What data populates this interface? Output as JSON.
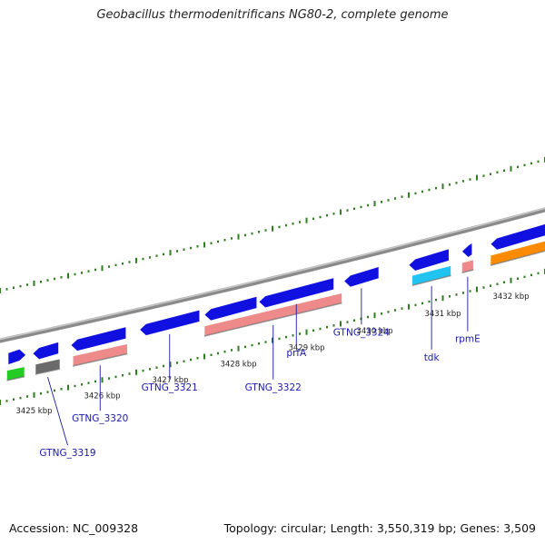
{
  "title": "Geobacillus thermodenitrificans NG80-2, complete genome",
  "footer": {
    "accession": "Accession: NC_009328",
    "summary": "Topology: circular; Length: 3,550,319 bp; Genes: 3,509"
  },
  "colors": {
    "backbone": "#8a8a8a",
    "tick": "#2e7d1e",
    "gene_blue": "#1010e0",
    "gene_pink": "#ee8a8a",
    "gene_cyan": "#21c4f0",
    "gene_gray": "#6a6a6a",
    "gene_green": "#22cc22",
    "gene_orange": "#ff8c00",
    "label": "#1a1aa6"
  },
  "scale_labels": [
    {
      "text": "3425 kbp",
      "kbp": 3425
    },
    {
      "text": "3426 kbp",
      "kbp": 3426
    },
    {
      "text": "3427 kbp",
      "kbp": 3427
    },
    {
      "text": "3428 kbp",
      "kbp": 3428
    },
    {
      "text": "3429 kbp",
      "kbp": 3429
    },
    {
      "text": "3430 kbp",
      "kbp": 3430
    },
    {
      "text": "3431 kbp",
      "kbp": 3431
    },
    {
      "text": "3432 kbp",
      "kbp": 3432
    }
  ],
  "genes": [
    {
      "id": "g_left_blue",
      "name": "",
      "color": "gene_blue",
      "strand": "+",
      "start": 3424.62,
      "end": 3424.88
    },
    {
      "id": "g_3319a",
      "name": "",
      "color": "gene_blue",
      "strand": "-",
      "start": 3424.98,
      "end": 3425.36
    },
    {
      "id": "g_3319",
      "name": "GTNG_3319",
      "color": "gene_gray",
      "strand": "-",
      "start": 3425.02,
      "end": 3425.38
    },
    {
      "id": "g_green",
      "name": "",
      "color": "gene_green",
      "strand": "+",
      "start": 3424.6,
      "end": 3424.86
    },
    {
      "id": "g_3320b",
      "name": "",
      "color": "gene_blue",
      "strand": "-",
      "start": 3425.54,
      "end": 3426.35
    },
    {
      "id": "g_3320",
      "name": "GTNG_3320",
      "color": "gene_pink",
      "strand": "-",
      "start": 3425.57,
      "end": 3426.37
    },
    {
      "id": "g_3321",
      "name": "GTNG_3321",
      "color": "gene_blue",
      "strand": "-",
      "start": 3426.55,
      "end": 3427.43
    },
    {
      "id": "g_3322b",
      "name": "",
      "color": "gene_blue",
      "strand": "-",
      "start": 3427.5,
      "end": 3428.27
    },
    {
      "id": "g_3322",
      "name": "GTNG_3322",
      "color": "gene_pink",
      "strand": "-",
      "start": 3427.5,
      "end": 3429.52
    },
    {
      "id": "g_prfA",
      "name": "prfA",
      "color": "gene_blue",
      "strand": "-",
      "start": 3428.3,
      "end": 3429.4
    },
    {
      "id": "g_3324",
      "name": "GTNG_3324",
      "color": "gene_blue",
      "strand": "-",
      "start": 3429.55,
      "end": 3430.06
    },
    {
      "id": "g_tdk_b",
      "name": "",
      "color": "gene_blue",
      "strand": "-",
      "start": 3430.5,
      "end": 3431.09
    },
    {
      "id": "g_tdk",
      "name": "tdk",
      "color": "gene_cyan",
      "strand": "-",
      "start": 3430.55,
      "end": 3431.12
    },
    {
      "id": "g_rpmE_b",
      "name": "",
      "color": "gene_blue",
      "strand": "-",
      "start": 3431.28,
      "end": 3431.43
    },
    {
      "id": "g_rpmE",
      "name": "rpmE",
      "color": "gene_pink",
      "strand": "-",
      "start": 3431.28,
      "end": 3431.45
    },
    {
      "id": "g_right_blue",
      "name": "",
      "color": "gene_blue",
      "strand": "-",
      "start": 3431.7,
      "end": 3432.6
    },
    {
      "id": "g_right_orange",
      "name": "",
      "color": "gene_orange",
      "strand": "-",
      "start": 3431.7,
      "end": 3432.6
    }
  ]
}
